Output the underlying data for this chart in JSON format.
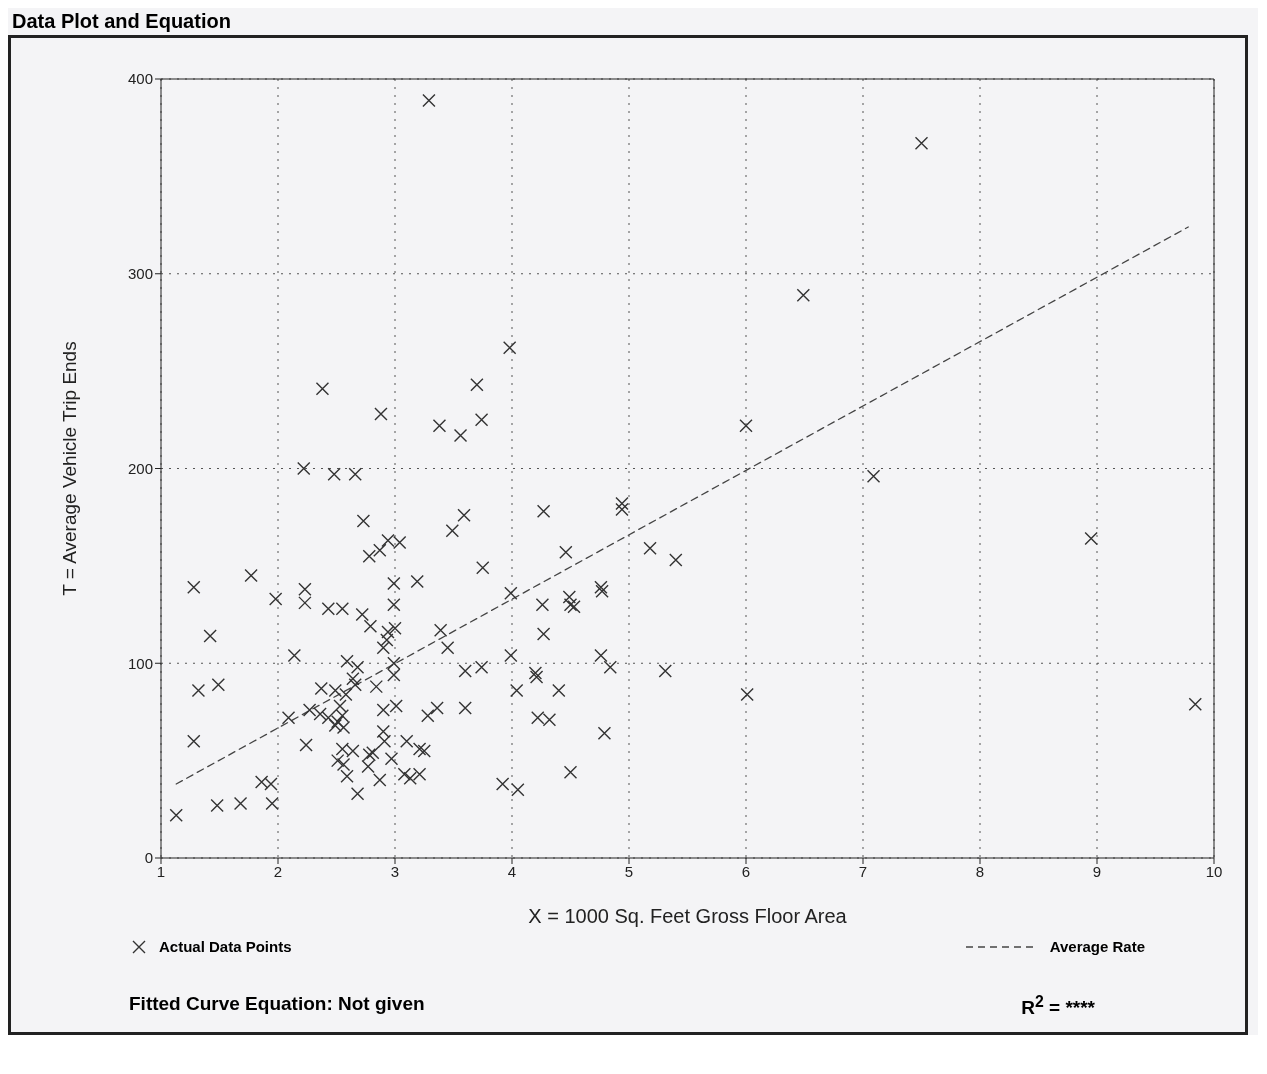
{
  "chart_data": {
    "type": "scatter",
    "title": "Data Plot and Equation",
    "xlabel": "X = 1000 Sq. Feet Gross Floor Area",
    "ylabel": "T = Average Vehicle Trip Ends",
    "xlim": [
      1,
      10
    ],
    "xticks": [
      1,
      2,
      3,
      4,
      5,
      6,
      7,
      8,
      9,
      10
    ],
    "ylim": [
      0,
      400
    ],
    "yticks": [
      0,
      100,
      200,
      300,
      400
    ],
    "grid": true,
    "legend": "bottom",
    "series": [
      {
        "name": "Actual Data Points",
        "color": "#333333",
        "marker": "cross",
        "x": [
          3.29,
          7.5,
          6.49,
          6.0,
          7.09,
          8.95,
          9.84,
          6.01,
          5.31,
          5.4,
          5.18,
          4.94,
          4.94,
          4.76,
          4.77,
          4.76,
          4.84,
          4.79,
          4.5,
          3.98,
          3.7,
          3.74,
          3.38,
          3.56,
          2.38,
          2.88,
          4.27,
          3.59,
          3.49,
          4.46,
          3.75,
          3.99,
          4.26,
          4.49,
          4.53,
          3.19,
          2.99,
          2.99,
          4.27,
          3.39,
          3.45,
          3.99,
          3.6,
          3.74,
          4.2,
          4.21,
          4.04,
          4.4,
          3.01,
          3.36,
          3.28,
          3.6,
          4.22,
          4.32,
          3.1,
          3.21,
          3.25,
          3.08,
          3.13,
          3.21,
          3.92,
          4.05,
          4.5,
          2.22,
          2.48,
          2.66,
          2.73,
          2.78,
          2.87,
          2.94,
          3.04,
          1.28,
          1.77,
          1.98,
          2.23,
          2.23,
          2.43,
          2.55,
          2.72,
          2.79,
          3.0,
          2.94,
          2.93,
          2.9,
          1.42,
          2.14,
          1.32,
          1.49,
          2.59,
          2.68,
          2.64,
          2.66,
          2.99,
          2.99,
          2.37,
          2.49,
          2.58,
          2.84,
          2.09,
          2.27,
          2.36,
          2.43,
          2.51,
          2.55,
          2.53,
          2.56,
          2.49,
          2.9,
          2.24,
          1.28,
          2.9,
          2.91,
          2.55,
          2.64,
          2.51,
          2.56,
          2.59,
          2.68,
          2.78,
          2.81,
          2.77,
          2.87,
          2.97,
          1.86,
          1.94,
          1.48,
          1.68,
          1.95,
          1.13
        ],
        "values": [
          389,
          367,
          289,
          222,
          196,
          164,
          79,
          84,
          96,
          153,
          159,
          182,
          179,
          139,
          137,
          104,
          98,
          64,
          130,
          262,
          243,
          225,
          222,
          217,
          241,
          228,
          178,
          176,
          168,
          157,
          149,
          136,
          130,
          134,
          129,
          142,
          141,
          130,
          115,
          117,
          108,
          104,
          96,
          98,
          95,
          93,
          86,
          86,
          78,
          77,
          73,
          77,
          72,
          71,
          60,
          56,
          55,
          43,
          41,
          43,
          38,
          35,
          44,
          200,
          197,
          197,
          173,
          155,
          158,
          163,
          162,
          139,
          145,
          133,
          138,
          131,
          128,
          128,
          125,
          119,
          118,
          116,
          112,
          108,
          114,
          104,
          86,
          89,
          101,
          98,
          92,
          89,
          94,
          100,
          87,
          86,
          84,
          88,
          72,
          76,
          74,
          72,
          70,
          73,
          78,
          67,
          68,
          76,
          58,
          60,
          65,
          60,
          56,
          55,
          50,
          48,
          42,
          33,
          53,
          54,
          47,
          40,
          51,
          39,
          38,
          27,
          28,
          28,
          22
        ]
      },
      {
        "name": "Average Rate",
        "type": "line",
        "color": "#444444",
        "line_style": "dashed",
        "marker": "none",
        "x": [
          1.13,
          9.78
        ],
        "values": [
          38,
          324
        ]
      }
    ],
    "annotations": [
      "Fitted Curve Equation:  Not given",
      "R$^{2}$ = ****"
    ]
  }
}
